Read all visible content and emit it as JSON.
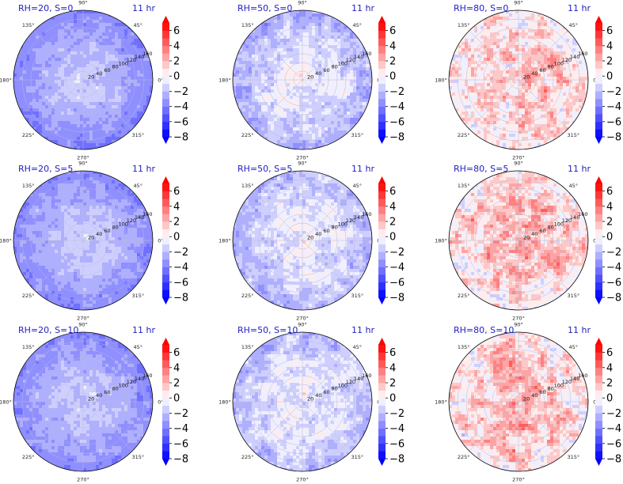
{
  "figure": {
    "rows": [
      "S=0",
      "S=5",
      "S=10"
    ],
    "cols": [
      "RH=20",
      "RH=50",
      "RH=80"
    ],
    "time_label": "11 hr"
  },
  "chart_data": [
    {
      "type": "heatmap",
      "projection": "polar",
      "title": "RH=20, S=0",
      "time": "11 hr",
      "rh": 20,
      "s": 0,
      "radial_ticks": [
        20,
        40,
        60,
        80,
        100,
        120,
        140,
        160
      ],
      "rlim": [
        0,
        160
      ],
      "angle_ticks": [
        "0°",
        "45°",
        "90°",
        "135°",
        "180°",
        "225°",
        "270°",
        "315°"
      ],
      "clim": [
        -8,
        7
      ],
      "center_value": -1.5,
      "edge_value": -4.0
    },
    {
      "type": "heatmap",
      "projection": "polar",
      "title": "RH=50, S=0",
      "time": "11 hr",
      "rh": 50,
      "s": 0,
      "radial_ticks": [
        20,
        40,
        60,
        80,
        100,
        120,
        140,
        160
      ],
      "rlim": [
        0,
        160
      ],
      "angle_ticks": [
        "0°",
        "45°",
        "90°",
        "135°",
        "180°",
        "225°",
        "270°",
        "315°"
      ],
      "clim": [
        -8,
        7
      ],
      "center_value": -0.3,
      "edge_value": -2.5
    },
    {
      "type": "heatmap",
      "projection": "polar",
      "title": "RH=80, S=0",
      "time": "11 hr",
      "rh": 80,
      "s": 0,
      "radial_ticks": [
        20,
        40,
        60,
        80,
        100,
        120,
        140,
        160
      ],
      "rlim": [
        0,
        160
      ],
      "angle_ticks": [
        "0°",
        "45°",
        "90°",
        "135°",
        "180°",
        "225°",
        "270°",
        "315°"
      ],
      "clim": [
        -8,
        7
      ],
      "center_value": 1.8,
      "edge_value": 0.3
    },
    {
      "type": "heatmap",
      "projection": "polar",
      "title": "RH=20, S=5",
      "time": "11 hr",
      "rh": 20,
      "s": 5,
      "radial_ticks": [
        20,
        40,
        60,
        80,
        100,
        120,
        140,
        160
      ],
      "rlim": [
        0,
        160
      ],
      "angle_ticks": [
        "0°",
        "45°",
        "90°",
        "135°",
        "180°",
        "225°",
        "270°",
        "315°"
      ],
      "clim": [
        -8,
        7
      ],
      "center_value": -1.5,
      "edge_value": -3.8
    },
    {
      "type": "heatmap",
      "projection": "polar",
      "title": "RH=50, S=5",
      "time": "11 hr",
      "rh": 50,
      "s": 5,
      "radial_ticks": [
        20,
        40,
        60,
        80,
        100,
        120,
        140,
        160
      ],
      "rlim": [
        0,
        160
      ],
      "angle_ticks": [
        "0°",
        "45°",
        "90°",
        "135°",
        "180°",
        "225°",
        "270°",
        "315°"
      ],
      "clim": [
        -8,
        7
      ],
      "center_value": -0.3,
      "edge_value": -2.3
    },
    {
      "type": "heatmap",
      "projection": "polar",
      "title": "RH=80, S=5",
      "time": "11 hr",
      "rh": 80,
      "s": 5,
      "radial_ticks": [
        20,
        40,
        60,
        80,
        100,
        120,
        140,
        160
      ],
      "rlim": [
        0,
        160
      ],
      "angle_ticks": [
        "0°",
        "45°",
        "90°",
        "135°",
        "180°",
        "225°",
        "270°",
        "315°"
      ],
      "clim": [
        -8,
        7
      ],
      "center_value": 2.2,
      "edge_value": 0.5
    },
    {
      "type": "heatmap",
      "projection": "polar",
      "title": "RH=20, S=10",
      "time": "11 hr",
      "rh": 20,
      "s": 10,
      "radial_ticks": [
        20,
        40,
        60,
        80,
        100,
        120,
        140,
        160
      ],
      "rlim": [
        0,
        160
      ],
      "angle_ticks": [
        "0°",
        "45°",
        "90°",
        "135°",
        "180°",
        "225°",
        "270°",
        "315°"
      ],
      "clim": [
        -8,
        7
      ],
      "center_value": -1.5,
      "edge_value": -3.8
    },
    {
      "type": "heatmap",
      "projection": "polar",
      "title": "RH=50, S=10",
      "time": "11 hr",
      "rh": 50,
      "s": 10,
      "radial_ticks": [
        20,
        40,
        60,
        80,
        100,
        120,
        140,
        160
      ],
      "rlim": [
        0,
        160
      ],
      "angle_ticks": [
        "0°",
        "45°",
        "90°",
        "135°",
        "180°",
        "225°",
        "270°",
        "315°"
      ],
      "clim": [
        -8,
        7
      ],
      "center_value": -0.3,
      "edge_value": -2.3
    },
    {
      "type": "heatmap",
      "projection": "polar",
      "title": "RH=80, S=10",
      "time": "11 hr",
      "rh": 80,
      "s": 10,
      "radial_ticks": [
        20,
        40,
        60,
        80,
        100,
        120,
        140,
        160
      ],
      "rlim": [
        0,
        160
      ],
      "angle_ticks": [
        "0°",
        "45°",
        "90°",
        "135°",
        "180°",
        "225°",
        "270°",
        "315°"
      ],
      "clim": [
        -8,
        7
      ],
      "center_value": 2.2,
      "edge_value": 0.5
    }
  ],
  "colorbar": {
    "ticks": [
      6,
      4,
      2,
      0,
      -2,
      -4,
      -6,
      -8
    ],
    "tick_labels": [
      "6",
      "4",
      "2",
      "0",
      "−2",
      "−4",
      "−6",
      "−8"
    ],
    "levels": [
      -8,
      -7,
      -6,
      -5,
      -4,
      -3,
      -2,
      -1,
      0,
      1,
      2,
      3,
      4,
      5,
      6,
      7
    ],
    "colormap": "bwr",
    "extend": "both",
    "low_color": "#0000ff",
    "mid_color": "#ffffff",
    "high_color": "#ff0000"
  }
}
